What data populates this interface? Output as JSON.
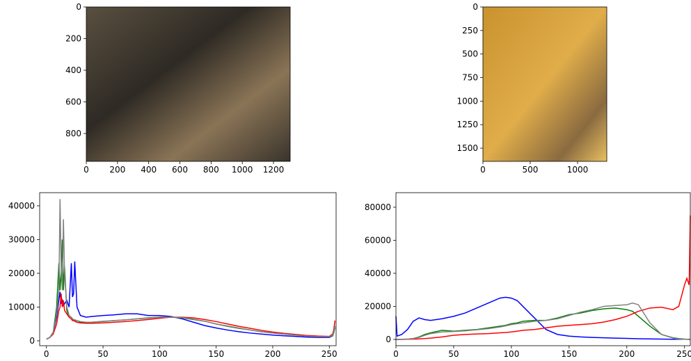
{
  "chart_data": [
    {
      "type": "image",
      "xlim": [
        0,
        1307
      ],
      "ylim": [
        976,
        0
      ],
      "xticks": [
        0,
        200,
        400,
        600,
        800,
        1000,
        1200
      ],
      "yticks": [
        0,
        200,
        400,
        600,
        800
      ]
    },
    {
      "type": "image",
      "xlim": [
        0,
        1309
      ],
      "ylim": [
        1640,
        0
      ],
      "xticks": [
        0,
        500,
        1000
      ],
      "yticks": [
        0,
        250,
        500,
        750,
        1000,
        1250,
        1500
      ]
    },
    {
      "type": "line",
      "xlim": [
        -6,
        256
      ],
      "ylim": [
        -1450,
        43900
      ],
      "xticks": [
        0,
        50,
        100,
        150,
        200,
        250
      ],
      "yticks": [
        0,
        10000,
        20000,
        30000,
        40000
      ],
      "x": [
        0,
        3,
        6,
        9,
        11,
        12,
        13,
        14,
        15,
        16,
        18,
        20,
        22,
        23,
        24,
        25,
        27,
        30,
        35,
        40,
        50,
        60,
        70,
        80,
        90,
        100,
        110,
        120,
        130,
        140,
        150,
        160,
        170,
        180,
        190,
        200,
        210,
        220,
        230,
        240,
        250,
        253,
        254,
        255
      ],
      "series": [
        {
          "color": "#0000ff",
          "values": [
            500,
            1000,
            2500,
            7000,
            12000,
            14500,
            11000,
            12000,
            10500,
            11000,
            12000,
            10000,
            23000,
            13000,
            14000,
            23500,
            10000,
            7500,
            7000,
            7200,
            7500,
            7700,
            8000,
            8000,
            7500,
            7500,
            7200,
            6500,
            5500,
            4500,
            3800,
            3200,
            2700,
            2300,
            2000,
            1700,
            1500,
            1300,
            1100,
            1000,
            1000,
            1500,
            2500,
            4000
          ]
        },
        {
          "color": "#008000",
          "values": [
            500,
            1000,
            2500,
            10000,
            23000,
            15000,
            20000,
            30000,
            15000,
            22000,
            9000,
            7000,
            6500,
            6200,
            6000,
            6000,
            5500,
            5500,
            5500,
            5500,
            5700,
            6000,
            6200,
            6500,
            6800,
            7000,
            7000,
            6800,
            6300,
            5800,
            5000,
            4300,
            3700,
            3200,
            2700,
            2300,
            2000,
            1700,
            1500,
            1300,
            1200,
            1500,
            2500,
            4000
          ]
        },
        {
          "color": "#ff0000",
          "values": [
            500,
            1000,
            2000,
            5000,
            9000,
            10000,
            14000,
            10000,
            12000,
            9000,
            8000,
            7000,
            6500,
            6000,
            6000,
            5800,
            5500,
            5300,
            5200,
            5200,
            5300,
            5500,
            5700,
            6000,
            6300,
            6700,
            7000,
            7000,
            6800,
            6300,
            5700,
            5000,
            4300,
            3700,
            3100,
            2600,
            2200,
            1900,
            1600,
            1400,
            1300,
            2000,
            3500,
            6000
          ]
        },
        {
          "color": "#808080",
          "values": [
            500,
            1000,
            2500,
            8000,
            15000,
            42000,
            22000,
            15000,
            36000,
            20000,
            10000,
            7500,
            7000,
            6500,
            6300,
            6200,
            6000,
            5700,
            5500,
            5500,
            5800,
            6000,
            6200,
            6500,
            6700,
            7000,
            7000,
            6900,
            6400,
            5800,
            5000,
            4400,
            3800,
            3200,
            2700,
            2300,
            2000,
            1700,
            1400,
            1200,
            1200,
            1700,
            2800,
            4500
          ]
        }
      ]
    },
    {
      "type": "line",
      "xlim": [
        0,
        255
      ],
      "ylim": [
        -3800,
        88800
      ],
      "xticks": [
        0,
        50,
        100,
        150,
        200,
        250
      ],
      "yticks": [
        0,
        20000,
        40000,
        60000,
        80000
      ],
      "x": [
        0,
        1,
        5,
        10,
        15,
        20,
        25,
        30,
        40,
        50,
        60,
        70,
        80,
        90,
        95,
        100,
        105,
        110,
        120,
        130,
        140,
        150,
        160,
        170,
        180,
        190,
        200,
        205,
        210,
        220,
        230,
        240,
        245,
        250,
        252,
        254,
        255
      ],
      "series": [
        {
          "color": "#0000ff",
          "values": [
            14000,
            2000,
            3000,
            6000,
            11000,
            13000,
            12000,
            11500,
            12500,
            14000,
            16000,
            19000,
            22000,
            25000,
            25500,
            25000,
            23500,
            20000,
            13000,
            6000,
            3000,
            2000,
            1500,
            1200,
            1000,
            800,
            600,
            500,
            400,
            300,
            200,
            100,
            100,
            100,
            100,
            100,
            100
          ]
        },
        {
          "color": "#008000",
          "values": [
            0,
            0,
            100,
            200,
            500,
            1500,
            3000,
            4000,
            5500,
            5000,
            5500,
            6000,
            7000,
            8000,
            8500,
            9500,
            10000,
            11000,
            11500,
            11500,
            13000,
            15000,
            16000,
            17500,
            18500,
            19000,
            18000,
            17000,
            14000,
            8000,
            3000,
            1000,
            500,
            200,
            100,
            0,
            0
          ]
        },
        {
          "color": "#ff0000",
          "values": [
            0,
            0,
            0,
            100,
            200,
            300,
            500,
            800,
            1500,
            2500,
            3000,
            3300,
            3500,
            4000,
            4200,
            4500,
            5000,
            5500,
            6000,
            7000,
            8000,
            8500,
            9000,
            9500,
            10500,
            12000,
            14000,
            15500,
            17000,
            19000,
            19500,
            18000,
            20000,
            33000,
            37000,
            33000,
            75000
          ]
        },
        {
          "color": "#808080",
          "values": [
            0,
            0,
            100,
            200,
            500,
            1200,
            2500,
            3500,
            4500,
            4800,
            5200,
            5800,
            6500,
            7500,
            8200,
            9000,
            9500,
            10000,
            11000,
            11500,
            12500,
            14500,
            16500,
            18000,
            20000,
            20500,
            21000,
            22000,
            21000,
            10000,
            3000,
            800,
            300,
            100,
            50,
            0,
            0
          ]
        }
      ]
    }
  ]
}
